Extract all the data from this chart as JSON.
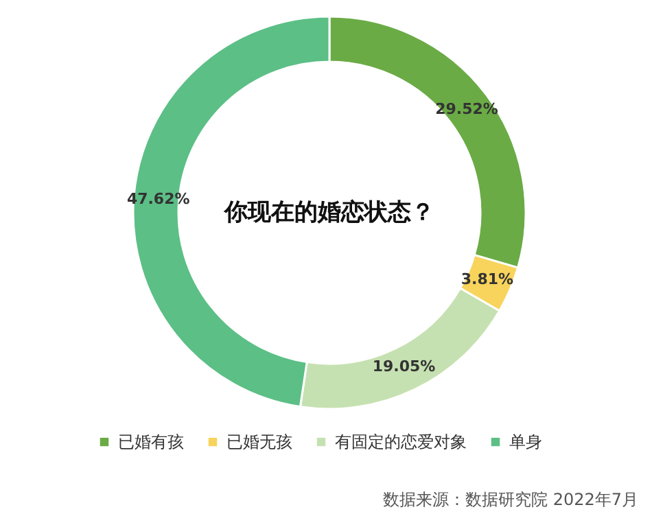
{
  "chart_data": {
    "type": "donut",
    "title": "你现在的婚恋状态？",
    "categories": [
      "已婚有孩",
      "已婚无孩",
      "有固定的恋爱对象",
      "单身"
    ],
    "values": [
      29.52,
      3.81,
      19.05,
      47.62
    ],
    "value_labels": [
      "29.52%",
      "3.81%",
      "19.05%",
      "47.62%"
    ],
    "colors": [
      "#6aab45",
      "#f8d45c",
      "#c6e1b1",
      "#5cbf86"
    ],
    "legend": "bottom",
    "annotations": [
      "数据来源：数据研究院 2022年7月"
    ]
  }
}
